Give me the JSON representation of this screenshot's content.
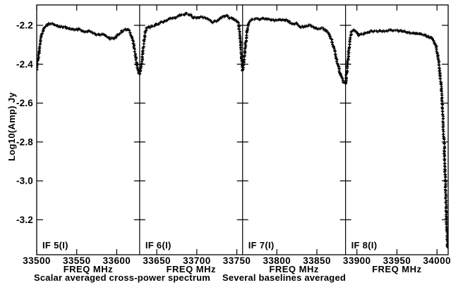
{
  "window": {
    "background": "#ffffff",
    "foreground": "#000000"
  },
  "chart_data": {
    "type": "line",
    "marker": "plus",
    "marker_color": "#000000",
    "grid": false,
    "legend": null,
    "title": "",
    "ylabel": "Log10(Amp) Jy",
    "caption_left": "Scalar averaged cross-power spectrum",
    "caption_right": "Several baselines averaged",
    "xlim": [
      33500,
      34014
    ],
    "ylim": [
      -3.38,
      -2.095
    ],
    "yticks": [
      -2.2,
      -2.4,
      -2.6,
      -2.8,
      -3.0,
      -3.2
    ],
    "xticks": [
      33500,
      33550,
      33600,
      33650,
      33700,
      33750,
      33800,
      33850,
      33900,
      33950,
      34000
    ],
    "xtick_label_hidden": [],
    "panels": [
      {
        "label": "IF 5(I)",
        "xlabel": "FREQ MHz",
        "xrange": [
          33500,
          33628.6
        ],
        "points": [
          [
            33500,
            -2.43
          ],
          [
            33502,
            -2.36
          ],
          [
            33504,
            -2.3
          ],
          [
            33506,
            -2.25
          ],
          [
            33509,
            -2.215
          ],
          [
            33512,
            -2.2
          ],
          [
            33516,
            -2.19
          ],
          [
            33521,
            -2.195
          ],
          [
            33527,
            -2.205
          ],
          [
            33534,
            -2.21
          ],
          [
            33541,
            -2.215
          ],
          [
            33547,
            -2.225
          ],
          [
            33553,
            -2.22
          ],
          [
            33560,
            -2.235
          ],
          [
            33566,
            -2.23
          ],
          [
            33572,
            -2.245
          ],
          [
            33578,
            -2.25
          ],
          [
            33583,
            -2.245
          ],
          [
            33589,
            -2.265
          ],
          [
            33595,
            -2.27
          ],
          [
            33600,
            -2.255
          ],
          [
            33605,
            -2.235
          ],
          [
            33609,
            -2.225
          ],
          [
            33613,
            -2.22
          ],
          [
            33616,
            -2.23
          ],
          [
            33619,
            -2.26
          ],
          [
            33622,
            -2.32
          ],
          [
            33625,
            -2.4
          ],
          [
            33627,
            -2.445
          ],
          [
            33628.6,
            -2.45
          ]
        ]
      },
      {
        "label": "IF 6(I)",
        "xlabel": "FREQ MHz",
        "xrange": [
          33628.6,
          33757.2
        ],
        "points": [
          [
            33628.6,
            -2.445
          ],
          [
            33631,
            -2.4
          ],
          [
            33633,
            -2.32
          ],
          [
            33635,
            -2.25
          ],
          [
            33637,
            -2.215
          ],
          [
            33640,
            -2.21
          ],
          [
            33644,
            -2.205
          ],
          [
            33648,
            -2.2
          ],
          [
            33653,
            -2.19
          ],
          [
            33659,
            -2.18
          ],
          [
            33666,
            -2.168
          ],
          [
            33673,
            -2.158
          ],
          [
            33680,
            -2.148
          ],
          [
            33686,
            -2.14
          ],
          [
            33691,
            -2.145
          ],
          [
            33696,
            -2.16
          ],
          [
            33702,
            -2.158
          ],
          [
            33708,
            -2.16
          ],
          [
            33714,
            -2.168
          ],
          [
            33720,
            -2.183
          ],
          [
            33726,
            -2.178
          ],
          [
            33731,
            -2.158
          ],
          [
            33736,
            -2.148
          ],
          [
            33740,
            -2.158
          ],
          [
            33745,
            -2.168
          ],
          [
            33749,
            -2.175
          ],
          [
            33752,
            -2.19
          ],
          [
            33754,
            -2.25
          ],
          [
            33756,
            -2.37
          ],
          [
            33757.2,
            -2.43
          ]
        ]
      },
      {
        "label": "IF 7(I)",
        "xlabel": "FREQ MHz",
        "xrange": [
          33757.2,
          33885.8
        ],
        "points": [
          [
            33757.2,
            -2.43
          ],
          [
            33759,
            -2.38
          ],
          [
            33761,
            -2.29
          ],
          [
            33763,
            -2.22
          ],
          [
            33765,
            -2.185
          ],
          [
            33768,
            -2.172
          ],
          [
            33773,
            -2.168
          ],
          [
            33780,
            -2.166
          ],
          [
            33788,
            -2.17
          ],
          [
            33794,
            -2.172
          ],
          [
            33800,
            -2.175
          ],
          [
            33806,
            -2.17
          ],
          [
            33812,
            -2.172
          ],
          [
            33818,
            -2.188
          ],
          [
            33824,
            -2.19
          ],
          [
            33830,
            -2.208
          ],
          [
            33836,
            -2.205
          ],
          [
            33842,
            -2.198
          ],
          [
            33846,
            -2.21
          ],
          [
            33851,
            -2.218
          ],
          [
            33856,
            -2.213
          ],
          [
            33860,
            -2.225
          ],
          [
            33864,
            -2.235
          ],
          [
            33868,
            -2.27
          ],
          [
            33872,
            -2.33
          ],
          [
            33876,
            -2.4
          ],
          [
            33880,
            -2.46
          ],
          [
            33883,
            -2.49
          ],
          [
            33885.8,
            -2.5
          ]
        ]
      },
      {
        "label": "IF 8(I)",
        "xlabel": "FREQ MHz",
        "xrange": [
          33885.8,
          34014
        ],
        "points": [
          [
            33885.8,
            -2.5
          ],
          [
            33887,
            -2.45
          ],
          [
            33889,
            -2.37
          ],
          [
            33891,
            -2.28
          ],
          [
            33893,
            -2.235
          ],
          [
            33896,
            -2.222
          ],
          [
            33899,
            -2.232
          ],
          [
            33902,
            -2.25
          ],
          [
            33906,
            -2.245
          ],
          [
            33911,
            -2.238
          ],
          [
            33917,
            -2.233
          ],
          [
            33924,
            -2.23
          ],
          [
            33931,
            -2.228
          ],
          [
            33938,
            -2.228
          ],
          [
            33945,
            -2.225
          ],
          [
            33952,
            -2.228
          ],
          [
            33959,
            -2.232
          ],
          [
            33966,
            -2.238
          ],
          [
            33973,
            -2.242
          ],
          [
            33980,
            -2.248
          ],
          [
            33986,
            -2.252
          ],
          [
            33991,
            -2.26
          ],
          [
            33995,
            -2.275
          ],
          [
            33999,
            -2.31
          ],
          [
            34002,
            -2.38
          ],
          [
            34005,
            -2.5
          ],
          [
            34007,
            -2.64
          ],
          [
            34009,
            -2.82
          ],
          [
            34010,
            -2.95
          ],
          [
            34011,
            -3.08
          ],
          [
            34012,
            -3.22
          ],
          [
            34013,
            -3.34
          ]
        ]
      }
    ]
  }
}
